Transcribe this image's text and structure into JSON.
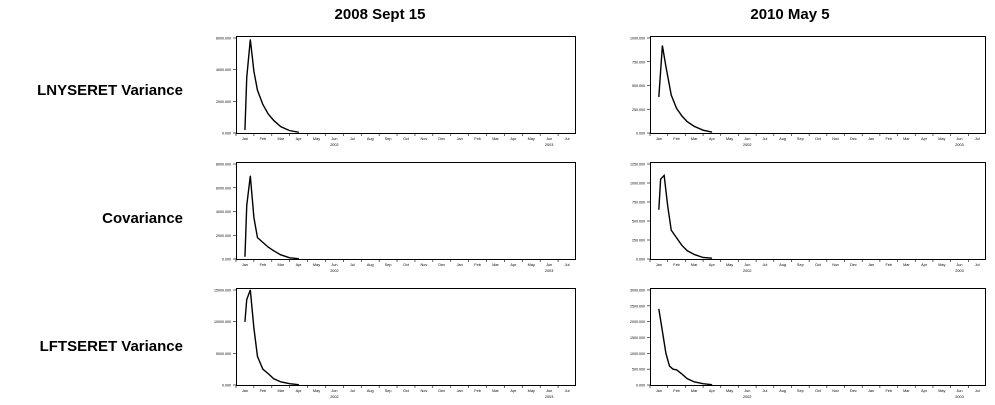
{
  "column_titles": [
    "2008 Sept 15",
    "2010 May 5"
  ],
  "row_labels": [
    "LNYSERET Variance",
    "Covariance",
    "LFTSERET Variance"
  ],
  "chart_data": [
    {
      "type": "line",
      "row": "LNYSERET Variance",
      "column": "2008 Sept 15",
      "ylim": [
        0,
        6000
      ],
      "yticks": [
        "0.000",
        "2000.000",
        "4000.000",
        "6000.000"
      ],
      "x": [
        0,
        0.1,
        0.3,
        0.5,
        0.7,
        1.0,
        1.3,
        1.6,
        2.0,
        2.5,
        3.0
      ],
      "values": [
        200,
        3500,
        5900,
        3900,
        2700,
        1800,
        1200,
        800,
        400,
        150,
        50
      ]
    },
    {
      "type": "line",
      "row": "LNYSERET Variance",
      "column": "2010 May 5",
      "ylim": [
        0,
        1000
      ],
      "yticks": [
        "0.000",
        "250.000",
        "500.000",
        "750.000",
        "1000.000"
      ],
      "x": [
        0,
        0.2,
        0.4,
        0.7,
        1.0,
        1.3,
        1.6,
        2.0,
        2.5,
        3.0
      ],
      "values": [
        380,
        920,
        700,
        400,
        260,
        180,
        120,
        70,
        30,
        10
      ]
    },
    {
      "type": "line",
      "row": "Covariance",
      "column": "2008 Sept 15",
      "ylim": [
        0,
        8000
      ],
      "yticks": [
        "0.000",
        "2000.000",
        "4000.000",
        "6000.000",
        "8000.000"
      ],
      "x": [
        0,
        0.1,
        0.3,
        0.5,
        0.7,
        1.0,
        1.3,
        1.6,
        2.0,
        2.5,
        3.0
      ],
      "values": [
        200,
        4500,
        7000,
        3500,
        1800,
        1400,
        1000,
        700,
        350,
        100,
        30
      ]
    },
    {
      "type": "line",
      "row": "Covariance",
      "column": "2010 May 5",
      "ylim": [
        0,
        1250
      ],
      "yticks": [
        "0.000",
        "250.000",
        "500.000",
        "750.000",
        "1000.000",
        "1250.000"
      ],
      "x": [
        0,
        0.1,
        0.3,
        0.5,
        0.7,
        1.0,
        1.3,
        1.6,
        2.0,
        2.5,
        3.0
      ],
      "values": [
        650,
        1050,
        1100,
        700,
        380,
        280,
        180,
        110,
        60,
        20,
        10
      ]
    },
    {
      "type": "line",
      "row": "LFTSERET Variance",
      "column": "2008 Sept 15",
      "ylim": [
        0,
        15000
      ],
      "yticks": [
        "0.000",
        "5000.000",
        "10000.000",
        "15000.000"
      ],
      "x": [
        0,
        0.1,
        0.3,
        0.5,
        0.7,
        1.0,
        1.3,
        1.6,
        2.0,
        2.5,
        3.0
      ],
      "values": [
        10000,
        13500,
        15000,
        9000,
        4500,
        2500,
        1800,
        1000,
        500,
        200,
        50
      ]
    },
    {
      "type": "line",
      "row": "LFTSERET Variance",
      "column": "2010 May 5",
      "ylim": [
        0,
        3000
      ],
      "yticks": [
        "0.000",
        "500.000",
        "1000.000",
        "1500.000",
        "2000.000",
        "2500.000",
        "3000.000"
      ],
      "x": [
        0,
        0.2,
        0.4,
        0.6,
        0.8,
        1.0,
        1.3,
        1.6,
        2.0,
        2.5,
        3.0
      ],
      "values": [
        2400,
        1700,
        1000,
        600,
        500,
        480,
        350,
        200,
        100,
        40,
        10
      ]
    }
  ],
  "x_axis": {
    "months": [
      "Jan",
      "Feb",
      "Mar",
      "Apr",
      "May",
      "Jun",
      "Jul",
      "Aug",
      "Sep",
      "Oct",
      "Nov",
      "Dec",
      "Jan",
      "Feb",
      "Mar",
      "Apr",
      "May",
      "Jun",
      "Jul"
    ],
    "year_labels": [
      "2002",
      "2003"
    ]
  }
}
